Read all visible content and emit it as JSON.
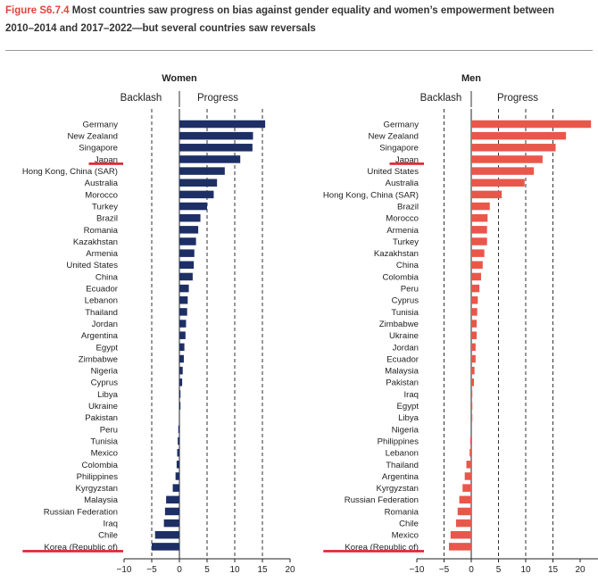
{
  "figure": {
    "label": "Figure S6.7.4",
    "title": "Most countries saw progress on bias against gender equality and women’s empowerment between 2010–2014 and 2017–2022—but several countries saw reversals"
  },
  "annotations": {
    "backlash_label": "Backlash",
    "progress_label": "Progress",
    "underlined": [
      "Japan",
      "Korea (Republic of)"
    ]
  },
  "colors": {
    "women": "#1e2f66",
    "men": "#e9574b",
    "underline": "#e0202a",
    "grid": "#333333"
  },
  "chart_data": [
    {
      "type": "bar",
      "orientation": "horizontal",
      "title": "Women",
      "xlim": [
        -10,
        20
      ],
      "xticks": [
        -10,
        -5,
        0,
        5,
        10,
        15,
        20
      ],
      "grid": "dashed vertical lines at -5, 5, 10, 15",
      "categories": [
        "Germany",
        "New Zealand",
        "Singapore",
        "Japan",
        "Hong Kong, China (SAR)",
        "Australia",
        "Morocco",
        "Turkey",
        "Brazil",
        "Romania",
        "Kazakhstan",
        "Armenia",
        "United States",
        "China",
        "Ecuador",
        "Lebanon",
        "Thailand",
        "Jordan",
        "Argentina",
        "Egypt",
        "Zimbabwe",
        "Nigeria",
        "Cyprus",
        "Libya",
        "Ukraine",
        "Pakistan",
        "Peru",
        "Tunisia",
        "Mexico",
        "Colombia",
        "Philippines",
        "Kyrgyzstan",
        "Malaysia",
        "Russian Federation",
        "Iraq",
        "Chile",
        "Korea (Republic of)"
      ],
      "values": [
        15.5,
        13.3,
        13.2,
        11.0,
        8.2,
        6.8,
        6.2,
        5.0,
        3.8,
        3.4,
        3.0,
        2.7,
        2.6,
        2.4,
        1.7,
        1.5,
        1.4,
        1.2,
        1.1,
        0.9,
        0.8,
        0.6,
        0.5,
        0.2,
        0.1,
        0.0,
        -0.2,
        -0.3,
        -0.4,
        -0.5,
        -0.7,
        -1.2,
        -2.4,
        -2.6,
        -2.8,
        -4.4,
        -5.0
      ]
    },
    {
      "type": "bar",
      "orientation": "horizontal",
      "title": "Men",
      "xlim": [
        -10,
        25
      ],
      "xticks": [
        -10,
        -5,
        0,
        5,
        10,
        15,
        20
      ],
      "grid": "dashed vertical lines at -5, 5, 10, 15",
      "categories": [
        "Germany",
        "New Zealand",
        "Singapore",
        "Japan",
        "United States",
        "Australia",
        "Hong Kong, China (SAR)",
        "Brazil",
        "Morocco",
        "Armenia",
        "Turkey",
        "Kazakhstan",
        "China",
        "Colombia",
        "Peru",
        "Cyprus",
        "Tunisia",
        "Zimbabwe",
        "Ukraine",
        "Jordan",
        "Ecuador",
        "Malaysia",
        "Pakistan",
        "Iraq",
        "Egypt",
        "Libya",
        "Nigeria",
        "Philippines",
        "Lebanon",
        "Thailand",
        "Argentina",
        "Kyrgyzstan",
        "Russian Federation",
        "Romania",
        "Chile",
        "Mexico",
        "Korea (Republic of)"
      ],
      "values": [
        22.0,
        17.4,
        15.5,
        13.1,
        11.5,
        9.8,
        5.6,
        3.4,
        3.0,
        2.9,
        2.9,
        2.4,
        2.1,
        1.8,
        1.5,
        1.2,
        1.1,
        1.0,
        1.0,
        0.8,
        0.8,
        0.6,
        0.5,
        0.2,
        0.2,
        0.1,
        0.0,
        -0.2,
        -0.3,
        -0.9,
        -1.2,
        -1.6,
        -2.2,
        -2.5,
        -2.8,
        -3.8,
        -4.1
      ]
    }
  ]
}
